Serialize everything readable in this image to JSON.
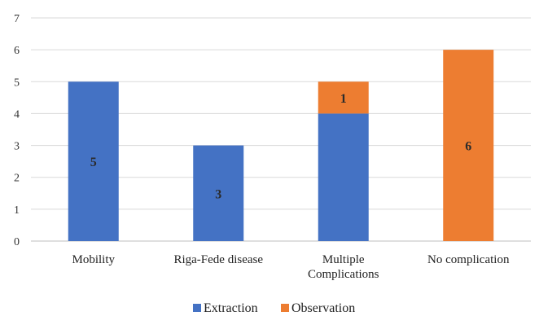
{
  "chart_data": {
    "type": "bar",
    "stacked": true,
    "categories": [
      [
        "Mobility"
      ],
      [
        "Riga-Fede disease"
      ],
      [
        "Multiple",
        "Complications"
      ],
      [
        "No complication"
      ]
    ],
    "series": [
      {
        "name": "Extraction",
        "color": "#4472c4",
        "values": [
          5,
          3,
          4,
          0
        ],
        "labels": [
          "5",
          "3",
          "",
          ""
        ]
      },
      {
        "name": "Observation",
        "color": "#ed7d31",
        "values": [
          0,
          0,
          1,
          6
        ],
        "labels": [
          "",
          "",
          "1",
          "6"
        ]
      }
    ],
    "title": "",
    "xlabel": "",
    "ylabel": "",
    "ylim": [
      0,
      7
    ],
    "yticks": [
      0,
      1,
      2,
      3,
      4,
      5,
      6,
      7
    ],
    "grid": true,
    "legend": "bottom"
  }
}
